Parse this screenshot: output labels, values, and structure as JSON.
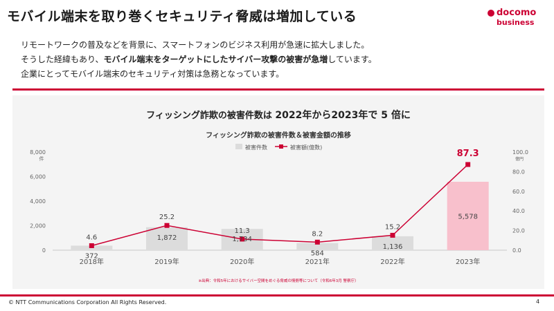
{
  "slide": {
    "title": "モバイル端末を取り巻くセキュリティ脅威は増加している",
    "logo_line1": "docomo",
    "logo_line2": "business",
    "intro_line1": "リモートワークの普及などを背景に、スマートフォンのビジネス利用が急速に拡大しました。",
    "intro_line2_pre": "そうした経緯もあり、",
    "intro_line2_bold": "モバイル端末をターゲットにしたサイバー攻撃の被害が急増",
    "intro_line2_post": "しています。",
    "intro_line3": "企業にとってモバイル端末のセキュリティ対策は急務となっています。",
    "copyright": "© NTT Communications Corporation All Rights Reserved.",
    "page_number": "4"
  },
  "chart_heading": {
    "pre": "フィッシング詐欺の被害件数は ",
    "emph": "2022年から2023年で 5 倍に"
  },
  "colors": {
    "accent": "#cc0033",
    "bar": "#dcdcdc",
    "bar_highlight": "#f8c0cc",
    "line": "#cc0033"
  },
  "chart_data": {
    "type": "bar",
    "title": "フィッシング詐欺の被害件数＆被害金額の推移",
    "categories": [
      "2018年",
      "2019年",
      "2020年",
      "2021年",
      "2022年",
      "2023年"
    ],
    "series": [
      {
        "name": "被害件数",
        "type": "bar",
        "axis": "left",
        "values": [
          372,
          1872,
          1734,
          584,
          1136,
          5578
        ],
        "labels": [
          "372",
          "1,872",
          "1,734",
          "584",
          "1,136",
          "5,578"
        ]
      },
      {
        "name": "被害額(億数)",
        "type": "line",
        "axis": "right",
        "values": [
          4.6,
          25.2,
          11.3,
          8.2,
          15.2,
          87.3
        ],
        "labels": [
          "4.6",
          "25.2",
          "11.3",
          "8.2",
          "15.2",
          "87.3"
        ]
      }
    ],
    "y_left": {
      "unit": "件",
      "ylim": [
        0,
        8000
      ],
      "ticks": [
        0,
        2000,
        4000,
        6000,
        8000
      ],
      "tick_labels": [
        "0",
        "2,000",
        "4,000",
        "6,000",
        "8,000"
      ]
    },
    "y_right": {
      "unit": "億円",
      "ylim": [
        0,
        100
      ],
      "ticks": [
        0,
        20,
        40,
        60,
        80,
        100
      ],
      "tick_labels": [
        "0.0",
        "20.0",
        "40.0",
        "60.0",
        "80.0",
        "100.0"
      ]
    },
    "highlight_category": "2023年",
    "legend_position": "top",
    "grid": false,
    "source_note": "※出典：令和5年におけるサイバー空間をめぐる脅威の情勢等について（令和6年3月 警察庁）"
  }
}
